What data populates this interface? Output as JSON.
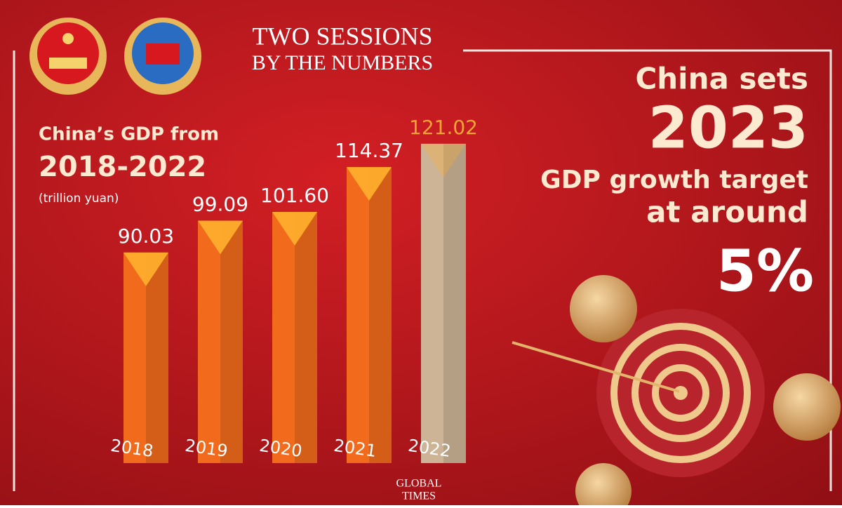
{
  "header": {
    "line1": "TWO SESSIONS",
    "line2": "BY THE NUMBERS"
  },
  "headline": {
    "line1": "China sets",
    "line2": "2023",
    "line3": "GDP growth target",
    "line4": "at around",
    "line5": "5%"
  },
  "logo": {
    "line1": "GLOBAL",
    "line2": "TIMES"
  },
  "chart_data": {
    "type": "bar",
    "title": "China’s GDP from",
    "title_line2": "2018-2022",
    "subtitle": "(trillion yuan)",
    "categories": [
      "2018",
      "2019",
      "2020",
      "2021",
      "2022"
    ],
    "values": [
      90.03,
      99.09,
      101.6,
      114.37,
      121.02
    ],
    "value_labels": [
      "90.03",
      "99.09",
      "101.60",
      "114.37",
      "121.02"
    ],
    "colors": [
      "#f26a1b",
      "#f26a1b",
      "#f26a1b",
      "#f26a1b",
      "#cdb497"
    ],
    "ylim": [
      30,
      130
    ]
  }
}
